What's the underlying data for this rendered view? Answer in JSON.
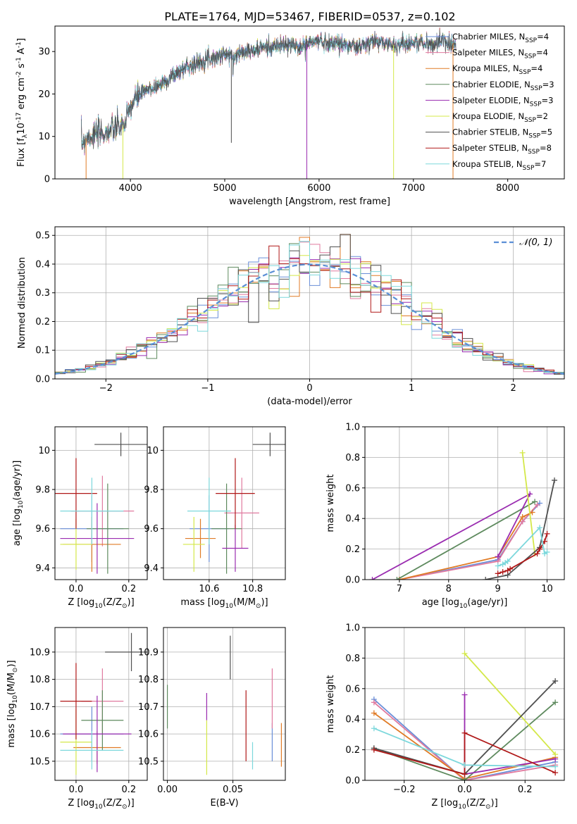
{
  "figure": {
    "title": "PLATE=1764, MJD=53467, FIBERID=0537, z=0.102"
  },
  "series_names": [
    "Chabrier MILES, N$_{SSP}$=4",
    "Salpeter MILES, N$_{SSP}$=4",
    "Kroupa MILES, N$_{SSP}$=4",
    "Chabrier ELODIE, N$_{SSP}$=3",
    "Salpeter ELODIE, N$_{SSP}$=3",
    "Kroupa ELODIE, N$_{SSP}$=2",
    "Chabrier STELIB, N$_{SSP}$=5",
    "Salpeter STELIB, N$_{SSP}$=8",
    "Kroupa STELIB, N$_{SSP}$=7"
  ],
  "colors": {
    "series": [
      "#6a8fd8",
      "#e07a9f",
      "#e07b26",
      "#5e8a5e",
      "#9a2cb0",
      "#d4e84a",
      "#505050",
      "#b01818",
      "#7dd8dc"
    ],
    "grid": "#b0b0b0",
    "normal": "#5b8fd6"
  },
  "chart_data": [
    {
      "id": "spectrum",
      "type": "line",
      "xlabel": "wavelength [Angstrom, rest frame]",
      "ylabel": "Flux [f$_\\lambda$10$^{-17}$ erg cm$^{-2}$ s$^{-1}$ A$^{-1}$]",
      "xlim": [
        3200,
        8600
      ],
      "ylim": [
        0,
        36
      ],
      "xticks": [
        4000,
        5000,
        6000,
        7000,
        8000
      ],
      "yticks": [
        0,
        10,
        20,
        30
      ],
      "grid": false,
      "legend": "right",
      "continuum_x": [
        3480,
        3550,
        3650,
        3750,
        3850,
        3950,
        4000,
        4050,
        4100,
        4200,
        4300,
        4400,
        4500,
        4600,
        4700,
        4800,
        4900,
        5000,
        5100,
        5200,
        5300,
        5400,
        5500,
        5600,
        5700,
        5800,
        5900,
        6000,
        6100,
        6200,
        6300,
        6400,
        6500,
        6600,
        6700,
        6800,
        6900,
        7000,
        7100,
        7200,
        7300,
        7400,
        7450
      ],
      "continuum_y": [
        8.5,
        10,
        10.5,
        11,
        12,
        13,
        17,
        18.5,
        20,
        21,
        22,
        23.5,
        25,
        26.5,
        27,
        28.5,
        28.5,
        29.5,
        28.5,
        30.5,
        30,
        31,
        31,
        31.5,
        31.5,
        31,
        32,
        32.5,
        32,
        32,
        31.5,
        31,
        31.5,
        32.5,
        32,
        31.5,
        32,
        32,
        32,
        31.5,
        32.5,
        32,
        32
      ],
      "drops": [
        {
          "x": 3530,
          "to": 0,
          "series": 2
        },
        {
          "x": 3920,
          "to": 0,
          "series": 5
        },
        {
          "x": 5070,
          "to": 8.5,
          "series": 6
        },
        {
          "x": 5870,
          "to": 0,
          "series": 4
        },
        {
          "x": 6790,
          "to": 0,
          "series": 5
        },
        {
          "x": 7420,
          "to": 0,
          "series": 2
        }
      ]
    },
    {
      "id": "residuals",
      "type": "line",
      "xlabel": "(data-model)/error",
      "ylabel": "Normed distribution",
      "xlim": [
        -2.5,
        2.5
      ],
      "ylim": [
        0,
        0.53
      ],
      "xticks": [
        -2,
        -1,
        0,
        1,
        2
      ],
      "yticks": [
        0.0,
        0.1,
        0.2,
        0.3,
        0.4,
        0.5
      ],
      "grid": true,
      "legend": "upper right",
      "normal_label": "$\\mathcal{N}(0, 1)$",
      "bin_width": 0.1
    },
    {
      "id": "age_vs_Z",
      "type": "scatter",
      "xlabel": "Z [log$_{10}$($Z/Z_\\odot$)]",
      "ylabel": "age  [log$_{10}$($age/yr$)]",
      "xlim": [
        -0.08,
        0.27
      ],
      "ylim": [
        9.34,
        10.12
      ],
      "xticks": [
        0.0,
        0.2
      ],
      "yticks": [
        9.4,
        9.6,
        9.8,
        10.0
      ],
      "grid": true,
      "points": [
        {
          "x": 0.06,
          "xe": 0.12,
          "y": 9.6,
          "ye": 0.17,
          "s": 0
        },
        {
          "x": 0.1,
          "xe": 0.12,
          "y": 9.69,
          "ye": 0.18,
          "s": 1
        },
        {
          "x": 0.06,
          "xe": 0.11,
          "y": 9.52,
          "ye": 0.14,
          "s": 2
        },
        {
          "x": 0.12,
          "xe": 0.08,
          "y": 9.6,
          "ye": 0.23,
          "s": 3
        },
        {
          "x": 0.08,
          "xe": 0.14,
          "y": 9.55,
          "ye": 0.18,
          "s": 4
        },
        {
          "x": -0.0,
          "xe": 0.06,
          "y": 9.52,
          "ye": 0.13,
          "s": 5
        },
        {
          "x": 0.17,
          "xe": 0.1,
          "y": 10.03,
          "ye": 0.06,
          "s": 6
        },
        {
          "x": 0.0,
          "xe": 0.08,
          "y": 9.78,
          "ye": 0.18,
          "s": 7
        },
        {
          "x": 0.06,
          "xe": 0.12,
          "y": 9.69,
          "ye": 0.17,
          "s": 8
        }
      ]
    },
    {
      "id": "age_vs_mass",
      "type": "scatter",
      "xlabel": "mass [log$_{10}$($M/M_\\odot$)]",
      "ylabel": "",
      "xlim": [
        10.39,
        10.95
      ],
      "ylim": [
        9.34,
        10.12
      ],
      "xticks": [
        10.6,
        10.8
      ],
      "yticks": [
        9.4,
        9.6,
        9.8,
        10.0
      ],
      "grid": true,
      "points": [
        {
          "x": 10.6,
          "xe": 0.09,
          "y": 9.6,
          "ye": 0.17,
          "s": 0
        },
        {
          "x": 10.75,
          "xe": 0.08,
          "y": 9.68,
          "ye": 0.18,
          "s": 1
        },
        {
          "x": 10.56,
          "xe": 0.07,
          "y": 9.55,
          "ye": 0.1,
          "s": 2
        },
        {
          "x": 10.68,
          "xe": 0.07,
          "y": 9.6,
          "ye": 0.23,
          "s": 3
        },
        {
          "x": 10.72,
          "xe": 0.06,
          "y": 9.5,
          "ye": 0.12,
          "s": 4
        },
        {
          "x": 10.53,
          "xe": 0.05,
          "y": 9.52,
          "ye": 0.14,
          "s": 5
        },
        {
          "x": 10.88,
          "xe": 0.08,
          "y": 10.03,
          "ye": 0.06,
          "s": 6
        },
        {
          "x": 10.72,
          "xe": 0.09,
          "y": 9.78,
          "ye": 0.18,
          "s": 7
        },
        {
          "x": 10.6,
          "xe": 0.1,
          "y": 9.69,
          "ye": 0.17,
          "s": 8
        }
      ]
    },
    {
      "id": "weights_vs_age",
      "type": "line",
      "xlabel": "age  [log$_{10}$($age/yr$)]",
      "ylabel": "mass weight",
      "xlim": [
        6.3,
        10.35
      ],
      "ylim": [
        0,
        1.0
      ],
      "xticks": [
        7,
        8,
        9,
        10
      ],
      "yticks": [
        0.0,
        0.2,
        0.4,
        0.6,
        0.8,
        1.0
      ],
      "grid": true,
      "series": [
        {
          "s": 0,
          "x": [
            7.0,
            9.0,
            9.5,
            9.85
          ],
          "y": [
            0.0,
            0.13,
            0.38,
            0.5
          ]
        },
        {
          "s": 1,
          "x": [
            7.0,
            9.0,
            9.5,
            9.8
          ],
          "y": [
            0.0,
            0.12,
            0.38,
            0.49
          ]
        },
        {
          "s": 2,
          "x": [
            7.0,
            9.0,
            9.5,
            9.7
          ],
          "y": [
            0.0,
            0.15,
            0.41,
            0.44
          ]
        },
        {
          "s": 3,
          "x": [
            6.95,
            9.75
          ],
          "y": [
            0.0,
            0.51
          ]
        },
        {
          "s": 4,
          "x": [
            6.45,
            9.65,
            9.0
          ],
          "y": [
            0.0,
            0.56,
            0.15
          ]
        },
        {
          "s": 5,
          "x": [
            9.5,
            9.75
          ],
          "y": [
            0.83,
            0.17
          ]
        },
        {
          "s": 6,
          "x": [
            8.75,
            9.2,
            9.85,
            10.15
          ],
          "y": [
            0.0,
            0.03,
            0.21,
            0.65
          ]
        },
        {
          "s": 7,
          "x": [
            9.0,
            9.1,
            9.2,
            9.25,
            9.8,
            9.85,
            9.95,
            10.0
          ],
          "y": [
            0.04,
            0.05,
            0.06,
            0.07,
            0.17,
            0.2,
            0.25,
            0.3
          ]
        },
        {
          "s": 8,
          "x": [
            9.0,
            9.1,
            9.15,
            9.2,
            9.85,
            9.95,
            10.0
          ],
          "y": [
            0.09,
            0.1,
            0.11,
            0.12,
            0.34,
            0.17,
            0.18
          ]
        }
      ]
    },
    {
      "id": "mass_vs_Z",
      "type": "scatter",
      "xlabel": "Z [log$_{10}$($Z/Z_\\odot$)]",
      "ylabel": "mass [log$_{10}$($M/M_\\odot$)]",
      "xlim": [
        -0.08,
        0.27
      ],
      "ylim": [
        10.43,
        10.99
      ],
      "xticks": [
        0.0,
        0.2
      ],
      "yticks": [
        10.5,
        10.6,
        10.7,
        10.8,
        10.9
      ],
      "grid": true,
      "points": [
        {
          "x": 0.06,
          "xe": 0.12,
          "y": 10.6,
          "ye": 0.1,
          "s": 0
        },
        {
          "x": 0.1,
          "xe": 0.08,
          "y": 10.72,
          "ye": 0.12,
          "s": 1
        },
        {
          "x": 0.08,
          "xe": 0.09,
          "y": 10.55,
          "ye": 0.06,
          "s": 2
        },
        {
          "x": 0.1,
          "xe": 0.08,
          "y": 10.65,
          "ye": 0.11,
          "s": 3
        },
        {
          "x": 0.08,
          "xe": 0.13,
          "y": 10.6,
          "ye": 0.14,
          "s": 4
        },
        {
          "x": 0.0,
          "xe": 0.06,
          "y": 10.57,
          "ye": 0.12,
          "s": 5
        },
        {
          "x": 0.21,
          "xe": 0.1,
          "y": 10.9,
          "ye": 0.07,
          "s": 6
        },
        {
          "x": 0.0,
          "xe": 0.06,
          "y": 10.72,
          "ye": 0.14,
          "s": 7
        },
        {
          "x": 0.06,
          "xe": 0.12,
          "y": 10.54,
          "ye": 0.07,
          "s": 8
        }
      ]
    },
    {
      "id": "mass_vs_EBV",
      "type": "scatter",
      "xlabel": "E(B-V)",
      "ylabel": "",
      "xlim": [
        -0.003,
        0.09
      ],
      "ylim": [
        10.43,
        10.99
      ],
      "xticks": [
        0.0,
        0.05
      ],
      "yticks": [
        10.5,
        10.6,
        10.7,
        10.8,
        10.9
      ],
      "grid": true,
      "points": [
        {
          "x": 0.08,
          "xe": 0.0,
          "y": 10.57,
          "ye": 0.07,
          "s": 0
        },
        {
          "x": 0.08,
          "xe": 0.0,
          "y": 10.73,
          "ye": 0.11,
          "s": 1
        },
        {
          "x": 0.087,
          "xe": 0.0,
          "y": 10.56,
          "ye": 0.08,
          "s": 2
        },
        {
          "x": 0.0,
          "xe": 0.0,
          "y": 10.7,
          "ye": 0.08,
          "s": 3
        },
        {
          "x": 0.03,
          "xe": 0.0,
          "y": 10.7,
          "ye": 0.05,
          "s": 4
        },
        {
          "x": 0.03,
          "xe": 0.0,
          "y": 10.55,
          "ye": 0.1,
          "s": 5
        },
        {
          "x": 0.048,
          "xe": 0.0,
          "y": 10.88,
          "ye": 0.08,
          "s": 6
        },
        {
          "x": 0.06,
          "xe": 0.0,
          "y": 10.63,
          "ye": 0.13,
          "s": 7
        },
        {
          "x": 0.065,
          "xe": 0.0,
          "y": 10.52,
          "ye": 0.05,
          "s": 8
        }
      ]
    },
    {
      "id": "weights_vs_Z",
      "type": "line",
      "xlabel": "Z [log$_{10}$($Z/Z_\\odot$)]",
      "ylabel": "mass weight",
      "xlim": [
        -0.33,
        0.33
      ],
      "ylim": [
        0,
        1.0
      ],
      "xticks": [
        -0.2,
        0.0,
        0.2
      ],
      "yticks": [
        0.0,
        0.2,
        0.4,
        0.6,
        0.8,
        1.0
      ],
      "grid": true,
      "series": [
        {
          "s": 0,
          "x": [
            -0.3,
            0.0,
            0.3
          ],
          "y": [
            0.53,
            0.0,
            0.12
          ]
        },
        {
          "s": 1,
          "x": [
            -0.3,
            0.0,
            0.3
          ],
          "y": [
            0.51,
            0.0,
            0.1
          ]
        },
        {
          "s": 2,
          "x": [
            -0.3,
            0.0,
            0.3
          ],
          "y": [
            0.44,
            0.01,
            0.15
          ]
        },
        {
          "s": 3,
          "x": [
            -0.3,
            0.0,
            0.3
          ],
          "y": [
            0.21,
            0.0,
            0.51
          ]
        },
        {
          "s": 4,
          "x": [
            0.0,
            0.0,
            0.3
          ],
          "y": [
            0.56,
            0.04,
            0.14
          ]
        },
        {
          "s": 5,
          "x": [
            0.0,
            0.3
          ],
          "y": [
            0.83,
            0.17
          ]
        },
        {
          "s": 6,
          "x": [
            -0.3,
            0.0,
            0.3
          ],
          "y": [
            0.21,
            0.04,
            0.65
          ]
        },
        {
          "s": 7,
          "x": [
            -0.3,
            0.0,
            0.0,
            0.3
          ],
          "y": [
            0.2,
            0.04,
            0.31,
            0.05
          ]
        },
        {
          "s": 8,
          "x": [
            -0.3,
            0.0,
            0.3
          ],
          "y": [
            0.34,
            0.1,
            0.09
          ]
        }
      ]
    }
  ]
}
